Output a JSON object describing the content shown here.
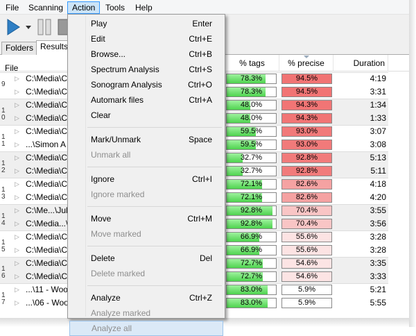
{
  "menubar": [
    "File",
    "Scanning",
    "Action",
    "Tools",
    "Help"
  ],
  "active_menu": 2,
  "tabs": [
    "Folders",
    "Results"
  ],
  "columns": [
    "File",
    "% tags",
    "% precise",
    "Duration"
  ],
  "groups": [
    {
      "label": "9",
      "rows": [
        {
          "file": "C:\\Media\\C",
          "tags": 78.3,
          "tags_label": "78.3%",
          "precise": 94.5,
          "precise_label": "94.5%",
          "duration": "4:19"
        },
        {
          "file": "C:\\Media\\C",
          "tags": 78.3,
          "tags_label": "78.3%",
          "precise": 94.5,
          "precise_label": "94.5%",
          "duration": "3:31"
        }
      ]
    },
    {
      "label": "10",
      "rows": [
        {
          "file": "C:\\Media\\C",
          "tags": 48.0,
          "tags_label": "48.0%",
          "precise": 94.3,
          "precise_label": "94.3%",
          "duration": "1:34"
        },
        {
          "file": "C:\\Media\\C",
          "tags": 48.0,
          "tags_label": "48.0%",
          "precise": 94.3,
          "precise_label": "94.3%",
          "duration": "1:33"
        }
      ]
    },
    {
      "label": "11",
      "rows": [
        {
          "file": "C:\\Media\\C",
          "tags": 59.5,
          "tags_label": "59.5%",
          "precise": 93.0,
          "precise_label": "93.0%",
          "duration": "3:07"
        },
        {
          "file": "...\\Simon A",
          "tags": 59.5,
          "tags_label": "59.5%",
          "precise": 93.0,
          "precise_label": "93.0%",
          "duration": "3:08"
        }
      ]
    },
    {
      "label": "12",
      "rows": [
        {
          "file": "C:\\Media\\C",
          "tags": 32.7,
          "tags_label": "32.7%",
          "precise": 92.8,
          "precise_label": "92.8%",
          "duration": "5:13"
        },
        {
          "file": "C:\\Media\\C",
          "tags": 32.7,
          "tags_label": "32.7%",
          "precise": 92.8,
          "precise_label": "92.8%",
          "duration": "5:11"
        }
      ]
    },
    {
      "label": "13",
      "rows": [
        {
          "file": "C:\\Media\\C",
          "tags": 72.1,
          "tags_label": "72.1%",
          "precise": 82.6,
          "precise_label": "82.6%",
          "duration": "4:18"
        },
        {
          "file": "C:\\Media\\C",
          "tags": 72.1,
          "tags_label": "72.1%",
          "precise": 82.6,
          "precise_label": "82.6%",
          "duration": "4:20"
        }
      ]
    },
    {
      "label": "14",
      "rows": [
        {
          "file": "C:\\Me...\\Jul",
          "tags": 92.8,
          "tags_label": "92.8%",
          "precise": 70.4,
          "precise_label": "70.4%",
          "duration": "3:55"
        },
        {
          "file": "C:\\Media...\\",
          "tags": 92.8,
          "tags_label": "92.8%",
          "precise": 70.4,
          "precise_label": "70.4%",
          "duration": "3:56"
        }
      ]
    },
    {
      "label": "15",
      "rows": [
        {
          "file": "C:\\Media\\C",
          "tags": 66.9,
          "tags_label": "66.9%",
          "precise": 55.6,
          "precise_label": "55.6%",
          "duration": "3:28"
        },
        {
          "file": "C:\\Media\\C",
          "tags": 66.9,
          "tags_label": "66.9%",
          "precise": 55.6,
          "precise_label": "55.6%",
          "duration": "3:28"
        }
      ]
    },
    {
      "label": "16",
      "rows": [
        {
          "file": "C:\\Media\\C",
          "tags": 72.7,
          "tags_label": "72.7%",
          "precise": 54.6,
          "precise_label": "54.6%",
          "duration": "3:35"
        },
        {
          "file": "C:\\Media\\C",
          "tags": 72.7,
          "tags_label": "72.7%",
          "precise": 54.6,
          "precise_label": "54.6%",
          "duration": "3:33"
        }
      ]
    },
    {
      "label": "17",
      "rows": [
        {
          "file": "...\\11 - Woo",
          "tags": 83.0,
          "tags_label": "83.0%",
          "precise": 5.9,
          "precise_label": "5.9%",
          "duration": "5:21"
        },
        {
          "file": "...\\06 - Woo",
          "tags": 83.0,
          "tags_label": "83.0%",
          "precise": 5.9,
          "precise_label": "5.9%",
          "duration": "5:55"
        }
      ]
    }
  ],
  "menu": {
    "groups": [
      [
        {
          "label": "Play",
          "shortcut": "Enter"
        },
        {
          "label": "Edit",
          "shortcut": "Ctrl+E"
        },
        {
          "label": "Browse...",
          "shortcut": "Ctrl+B"
        },
        {
          "label": "Spectrum Analysis",
          "shortcut": "Ctrl+S"
        },
        {
          "label": "Sonogram Analysis",
          "shortcut": "Ctrl+O"
        },
        {
          "label": "Automark files",
          "shortcut": "Ctrl+A"
        },
        {
          "label": "Clear"
        }
      ],
      [
        {
          "label": "Mark/Unmark",
          "shortcut": "Space"
        },
        {
          "label": "Unmark all",
          "enabled": false
        }
      ],
      [
        {
          "label": "Ignore",
          "shortcut": "Ctrl+I"
        },
        {
          "label": "Ignore marked",
          "enabled": false
        }
      ],
      [
        {
          "label": "Move",
          "shortcut": "Ctrl+M"
        },
        {
          "label": "Move marked",
          "enabled": false
        }
      ],
      [
        {
          "label": "Delete",
          "shortcut": "Del"
        },
        {
          "label": "Delete marked",
          "enabled": false
        }
      ],
      [
        {
          "label": "Analyze",
          "shortcut": "Ctrl+Z"
        },
        {
          "label": "Analyze marked",
          "enabled": false
        },
        {
          "label": "Analyze all",
          "enabled": false,
          "hovered": true
        }
      ]
    ]
  }
}
